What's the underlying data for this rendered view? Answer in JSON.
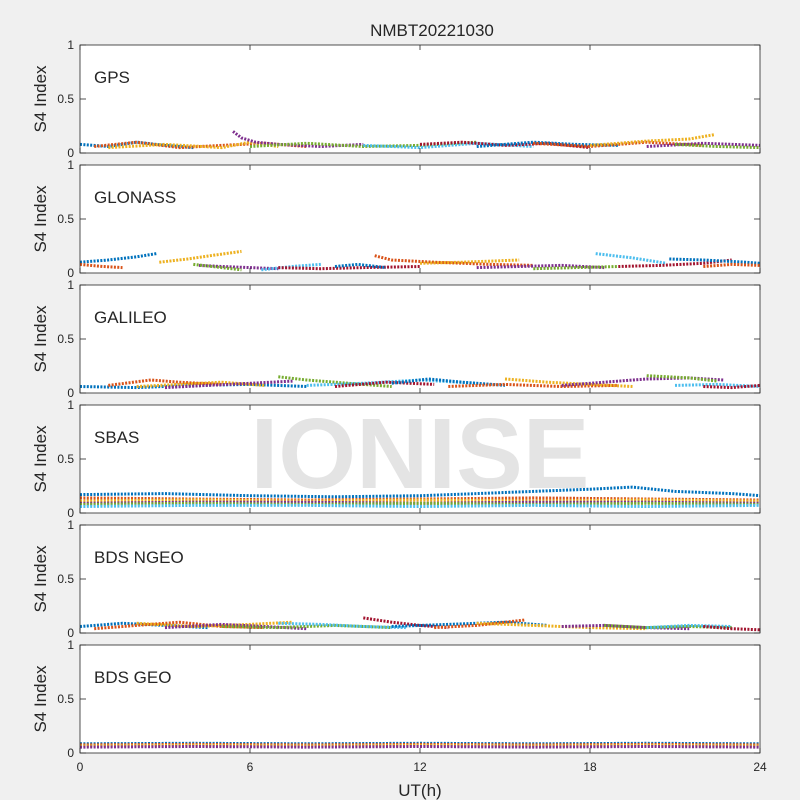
{
  "chart_data": {
    "type": "line",
    "title": "NMBT20221030",
    "xlabel": "UT(h)",
    "ylabel": "S4 Index",
    "xlim": [
      0,
      24
    ],
    "ylim": [
      0,
      1
    ],
    "x_ticks": [
      "0",
      "6",
      "12",
      "18",
      "24"
    ],
    "y_ticks": [
      "0",
      "0.5",
      "1"
    ],
    "watermark": "IONISE",
    "grid": false,
    "series_colors": [
      "#0072bd",
      "#d95319",
      "#edb120",
      "#7e2f8e",
      "#77ac30",
      "#4dbeee",
      "#a2142f"
    ],
    "panels": [
      {
        "name": "GPS",
        "series": [
          {
            "x": [
              0,
              1,
              2,
              3,
              4
            ],
            "y": [
              0.08,
              0.06,
              0.1,
              0.07,
              0.05
            ]
          },
          {
            "x": [
              0.5,
              2,
              3.5,
              5,
              6.5,
              8
            ],
            "y": [
              0.06,
              0.1,
              0.05,
              0.07,
              0.09,
              0.06
            ]
          },
          {
            "x": [
              1,
              3,
              5,
              6,
              7
            ],
            "y": [
              0.05,
              0.08,
              0.05,
              0.1,
              0.06
            ]
          },
          {
            "x": [
              5.4,
              5.7,
              6.2,
              7,
              8.5,
              10
            ],
            "y": [
              0.2,
              0.14,
              0.1,
              0.08,
              0.06,
              0.08
            ]
          },
          {
            "x": [
              6,
              8,
              10,
              12,
              14
            ],
            "y": [
              0.06,
              0.09,
              0.06,
              0.07,
              0.1
            ]
          },
          {
            "x": [
              10,
              12,
              14,
              16
            ],
            "y": [
              0.07,
              0.05,
              0.09,
              0.06
            ]
          },
          {
            "x": [
              12,
              13.5,
              15,
              16.5,
              18
            ],
            "y": [
              0.08,
              0.1,
              0.07,
              0.09,
              0.05
            ]
          },
          {
            "x": [
              14,
              16,
              17.5,
              19
            ],
            "y": [
              0.06,
              0.1,
              0.08,
              0.07
            ]
          },
          {
            "x": [
              16,
              18,
              20,
              22
            ],
            "y": [
              0.09,
              0.06,
              0.1,
              0.07
            ]
          },
          {
            "x": [
              18,
              20,
              21.5,
              22.4
            ],
            "y": [
              0.07,
              0.11,
              0.13,
              0.17
            ]
          },
          {
            "x": [
              20,
              22,
              24
            ],
            "y": [
              0.06,
              0.09,
              0.07
            ]
          },
          {
            "x": [
              21,
              22.5,
              24
            ],
            "y": [
              0.08,
              0.06,
              0.05
            ]
          }
        ]
      },
      {
        "name": "GLONASS",
        "series": [
          {
            "x": [
              0,
              1,
              2,
              2.7
            ],
            "y": [
              0.1,
              0.12,
              0.15,
              0.18
            ]
          },
          {
            "x": [
              0,
              0.8,
              1.5
            ],
            "y": [
              0.08,
              0.06,
              0.05
            ]
          },
          {
            "x": [
              2.8,
              3.8,
              4.6,
              5.7
            ],
            "y": [
              0.1,
              0.13,
              0.16,
              0.2
            ]
          },
          {
            "x": [
              4.2,
              5,
              6,
              7
            ],
            "y": [
              0.07,
              0.06,
              0.05,
              0.04
            ]
          },
          {
            "x": [
              4,
              5,
              5.7
            ],
            "y": [
              0.08,
              0.05,
              0.03
            ]
          },
          {
            "x": [
              6.4,
              7.5,
              8.5
            ],
            "y": [
              0.03,
              0.06,
              0.08
            ]
          },
          {
            "x": [
              7,
              8.5,
              10,
              12
            ],
            "y": [
              0.05,
              0.04,
              0.05,
              0.06
            ]
          },
          {
            "x": [
              9,
              9.8,
              10.8
            ],
            "y": [
              0.06,
              0.08,
              0.05
            ]
          },
          {
            "x": [
              10.4,
              11,
              12.5,
              14.5,
              16
            ],
            "y": [
              0.16,
              0.12,
              0.1,
              0.08,
              0.07
            ]
          },
          {
            "x": [
              12,
              13.5,
              15.5
            ],
            "y": [
              0.09,
              0.1,
              0.12
            ]
          },
          {
            "x": [
              14,
              15.5,
              17,
              18.5
            ],
            "y": [
              0.05,
              0.06,
              0.07,
              0.05
            ]
          },
          {
            "x": [
              16,
              17.5,
              19
            ],
            "y": [
              0.04,
              0.05,
              0.06
            ]
          },
          {
            "x": [
              18.2,
              19.5,
              20.7
            ],
            "y": [
              0.18,
              0.14,
              0.09
            ]
          },
          {
            "x": [
              19,
              20.5,
              22,
              23
            ],
            "y": [
              0.06,
              0.07,
              0.09,
              0.12
            ]
          },
          {
            "x": [
              20.8,
              22,
              23.5,
              24
            ],
            "y": [
              0.13,
              0.12,
              0.1,
              0.09
            ]
          },
          {
            "x": [
              22,
              23,
              24
            ],
            "y": [
              0.06,
              0.08,
              0.07
            ]
          }
        ]
      },
      {
        "name": "GALILEO",
        "series": [
          {
            "x": [
              0,
              2,
              4,
              6,
              8
            ],
            "y": [
              0.06,
              0.05,
              0.07,
              0.08,
              0.06
            ]
          },
          {
            "x": [
              1,
              2.5,
              3.5,
              5
            ],
            "y": [
              0.07,
              0.12,
              0.1,
              0.08
            ]
          },
          {
            "x": [
              2,
              3.5,
              5,
              6.5
            ],
            "y": [
              0.06,
              0.08,
              0.1,
              0.07
            ]
          },
          {
            "x": [
              3,
              4.5,
              6,
              7.5
            ],
            "y": [
              0.05,
              0.07,
              0.09,
              0.11
            ]
          },
          {
            "x": [
              7,
              8,
              9,
              10,
              11
            ],
            "y": [
              0.15,
              0.12,
              0.1,
              0.08,
              0.06
            ]
          },
          {
            "x": [
              8,
              10,
              12,
              14
            ],
            "y": [
              0.07,
              0.09,
              0.12,
              0.09
            ]
          },
          {
            "x": [
              9,
              10.8,
              12.5
            ],
            "y": [
              0.06,
              0.1,
              0.08
            ]
          },
          {
            "x": [
              11,
              12.3,
              13.5,
              15
            ],
            "y": [
              0.09,
              0.13,
              0.1,
              0.07
            ]
          },
          {
            "x": [
              13,
              15,
              17,
              19
            ],
            "y": [
              0.06,
              0.08,
              0.06,
              0.07
            ]
          },
          {
            "x": [
              15,
              16.5,
              18,
              19.5
            ],
            "y": [
              0.13,
              0.1,
              0.08,
              0.06
            ]
          },
          {
            "x": [
              17,
              18.5,
              20,
              21.5,
              22.7
            ],
            "y": [
              0.07,
              0.1,
              0.13,
              0.14,
              0.12
            ]
          },
          {
            "x": [
              20,
              21.5,
              22.5
            ],
            "y": [
              0.16,
              0.14,
              0.11
            ]
          },
          {
            "x": [
              21,
              22.5,
              24
            ],
            "y": [
              0.07,
              0.08,
              0.06
            ]
          },
          {
            "x": [
              22,
              23,
              24
            ],
            "y": [
              0.06,
              0.05,
              0.07
            ]
          }
        ]
      },
      {
        "name": "SBAS",
        "series": [
          {
            "x": [
              0,
              3,
              6,
              9,
              12,
              14,
              16,
              18,
              19.5,
              21,
              23,
              24
            ],
            "y": [
              0.17,
              0.18,
              0.16,
              0.15,
              0.16,
              0.18,
              0.2,
              0.22,
              0.24,
              0.2,
              0.18,
              0.16
            ]
          },
          {
            "x": [
              0,
              4,
              8,
              12,
              16,
              20,
              24
            ],
            "y": [
              0.14,
              0.13,
              0.12,
              0.13,
              0.14,
              0.13,
              0.12
            ]
          },
          {
            "x": [
              0,
              4,
              8,
              12,
              16,
              20,
              24
            ],
            "y": [
              0.11,
              0.12,
              0.11,
              0.12,
              0.11,
              0.12,
              0.11
            ]
          },
          {
            "x": [
              0,
              4,
              8,
              12,
              16,
              20,
              24
            ],
            "y": [
              0.09,
              0.1,
              0.1,
              0.09,
              0.1,
              0.1,
              0.09
            ]
          },
          {
            "x": [
              0,
              4,
              8,
              12,
              16,
              20,
              24
            ],
            "y": [
              0.08,
              0.09,
              0.08,
              0.09,
              0.08,
              0.09,
              0.08
            ]
          },
          {
            "x": [
              0,
              4,
              8,
              12,
              16,
              20,
              24
            ],
            "y": [
              0.06,
              0.07,
              0.07,
              0.06,
              0.07,
              0.06,
              0.07
            ]
          }
        ]
      },
      {
        "name": "BDS NGEO",
        "series": [
          {
            "x": [
              0,
              1.5,
              3,
              4.5
            ],
            "y": [
              0.06,
              0.09,
              0.07,
              0.05
            ]
          },
          {
            "x": [
              0.5,
              2,
              3.5,
              5,
              6.5
            ],
            "y": [
              0.04,
              0.07,
              0.1,
              0.06,
              0.05
            ]
          },
          {
            "x": [
              2,
              4,
              6,
              7.5
            ],
            "y": [
              0.09,
              0.06,
              0.08,
              0.1
            ]
          },
          {
            "x": [
              3,
              5,
              6.5,
              8
            ],
            "y": [
              0.05,
              0.08,
              0.06,
              0.04
            ]
          },
          {
            "x": [
              5,
              7,
              9,
              11
            ],
            "y": [
              0.06,
              0.05,
              0.07,
              0.05
            ]
          },
          {
            "x": [
              7,
              8.5,
              10,
              11.5
            ],
            "y": [
              0.09,
              0.08,
              0.06,
              0.05
            ]
          },
          {
            "x": [
              10,
              11,
              12,
              13
            ],
            "y": [
              0.14,
              0.1,
              0.07,
              0.05
            ]
          },
          {
            "x": [
              11,
              13,
              15,
              16.5
            ],
            "y": [
              0.06,
              0.08,
              0.1,
              0.07
            ]
          },
          {
            "x": [
              12.5,
              14,
              15.7
            ],
            "y": [
              0.05,
              0.07,
              0.12
            ]
          },
          {
            "x": [
              14,
              16,
              18,
              20
            ],
            "y": [
              0.09,
              0.07,
              0.05,
              0.04
            ]
          },
          {
            "x": [
              17,
              18.5,
              20,
              21.5
            ],
            "y": [
              0.06,
              0.07,
              0.05,
              0.04
            ]
          },
          {
            "x": [
              18.5,
              20,
              21.5,
              23
            ],
            "y": [
              0.07,
              0.05,
              0.06,
              0.05
            ]
          },
          {
            "x": [
              20,
              21.5,
              23
            ],
            "y": [
              0.05,
              0.07,
              0.06
            ]
          },
          {
            "x": [
              22,
              23,
              24
            ],
            "y": [
              0.06,
              0.04,
              0.03
            ]
          }
        ]
      },
      {
        "name": "BDS GEO",
        "series": [
          {
            "x": [
              0,
              4,
              8,
              12,
              16,
              20,
              24
            ],
            "y": [
              0.085,
              0.09,
              0.085,
              0.09,
              0.085,
              0.09,
              0.085
            ]
          },
          {
            "x": [
              0,
              4,
              8,
              12,
              16,
              20,
              24
            ],
            "y": [
              0.075,
              0.08,
              0.075,
              0.08,
              0.075,
              0.08,
              0.075
            ]
          },
          {
            "x": [
              0,
              4,
              8,
              12,
              16,
              20,
              24
            ],
            "y": [
              0.065,
              0.07,
              0.065,
              0.07,
              0.065,
              0.07,
              0.065
            ]
          },
          {
            "x": [
              0,
              4,
              8,
              12,
              16,
              20,
              24
            ],
            "y": [
              0.055,
              0.06,
              0.055,
              0.06,
              0.055,
              0.06,
              0.055
            ]
          }
        ]
      }
    ]
  }
}
